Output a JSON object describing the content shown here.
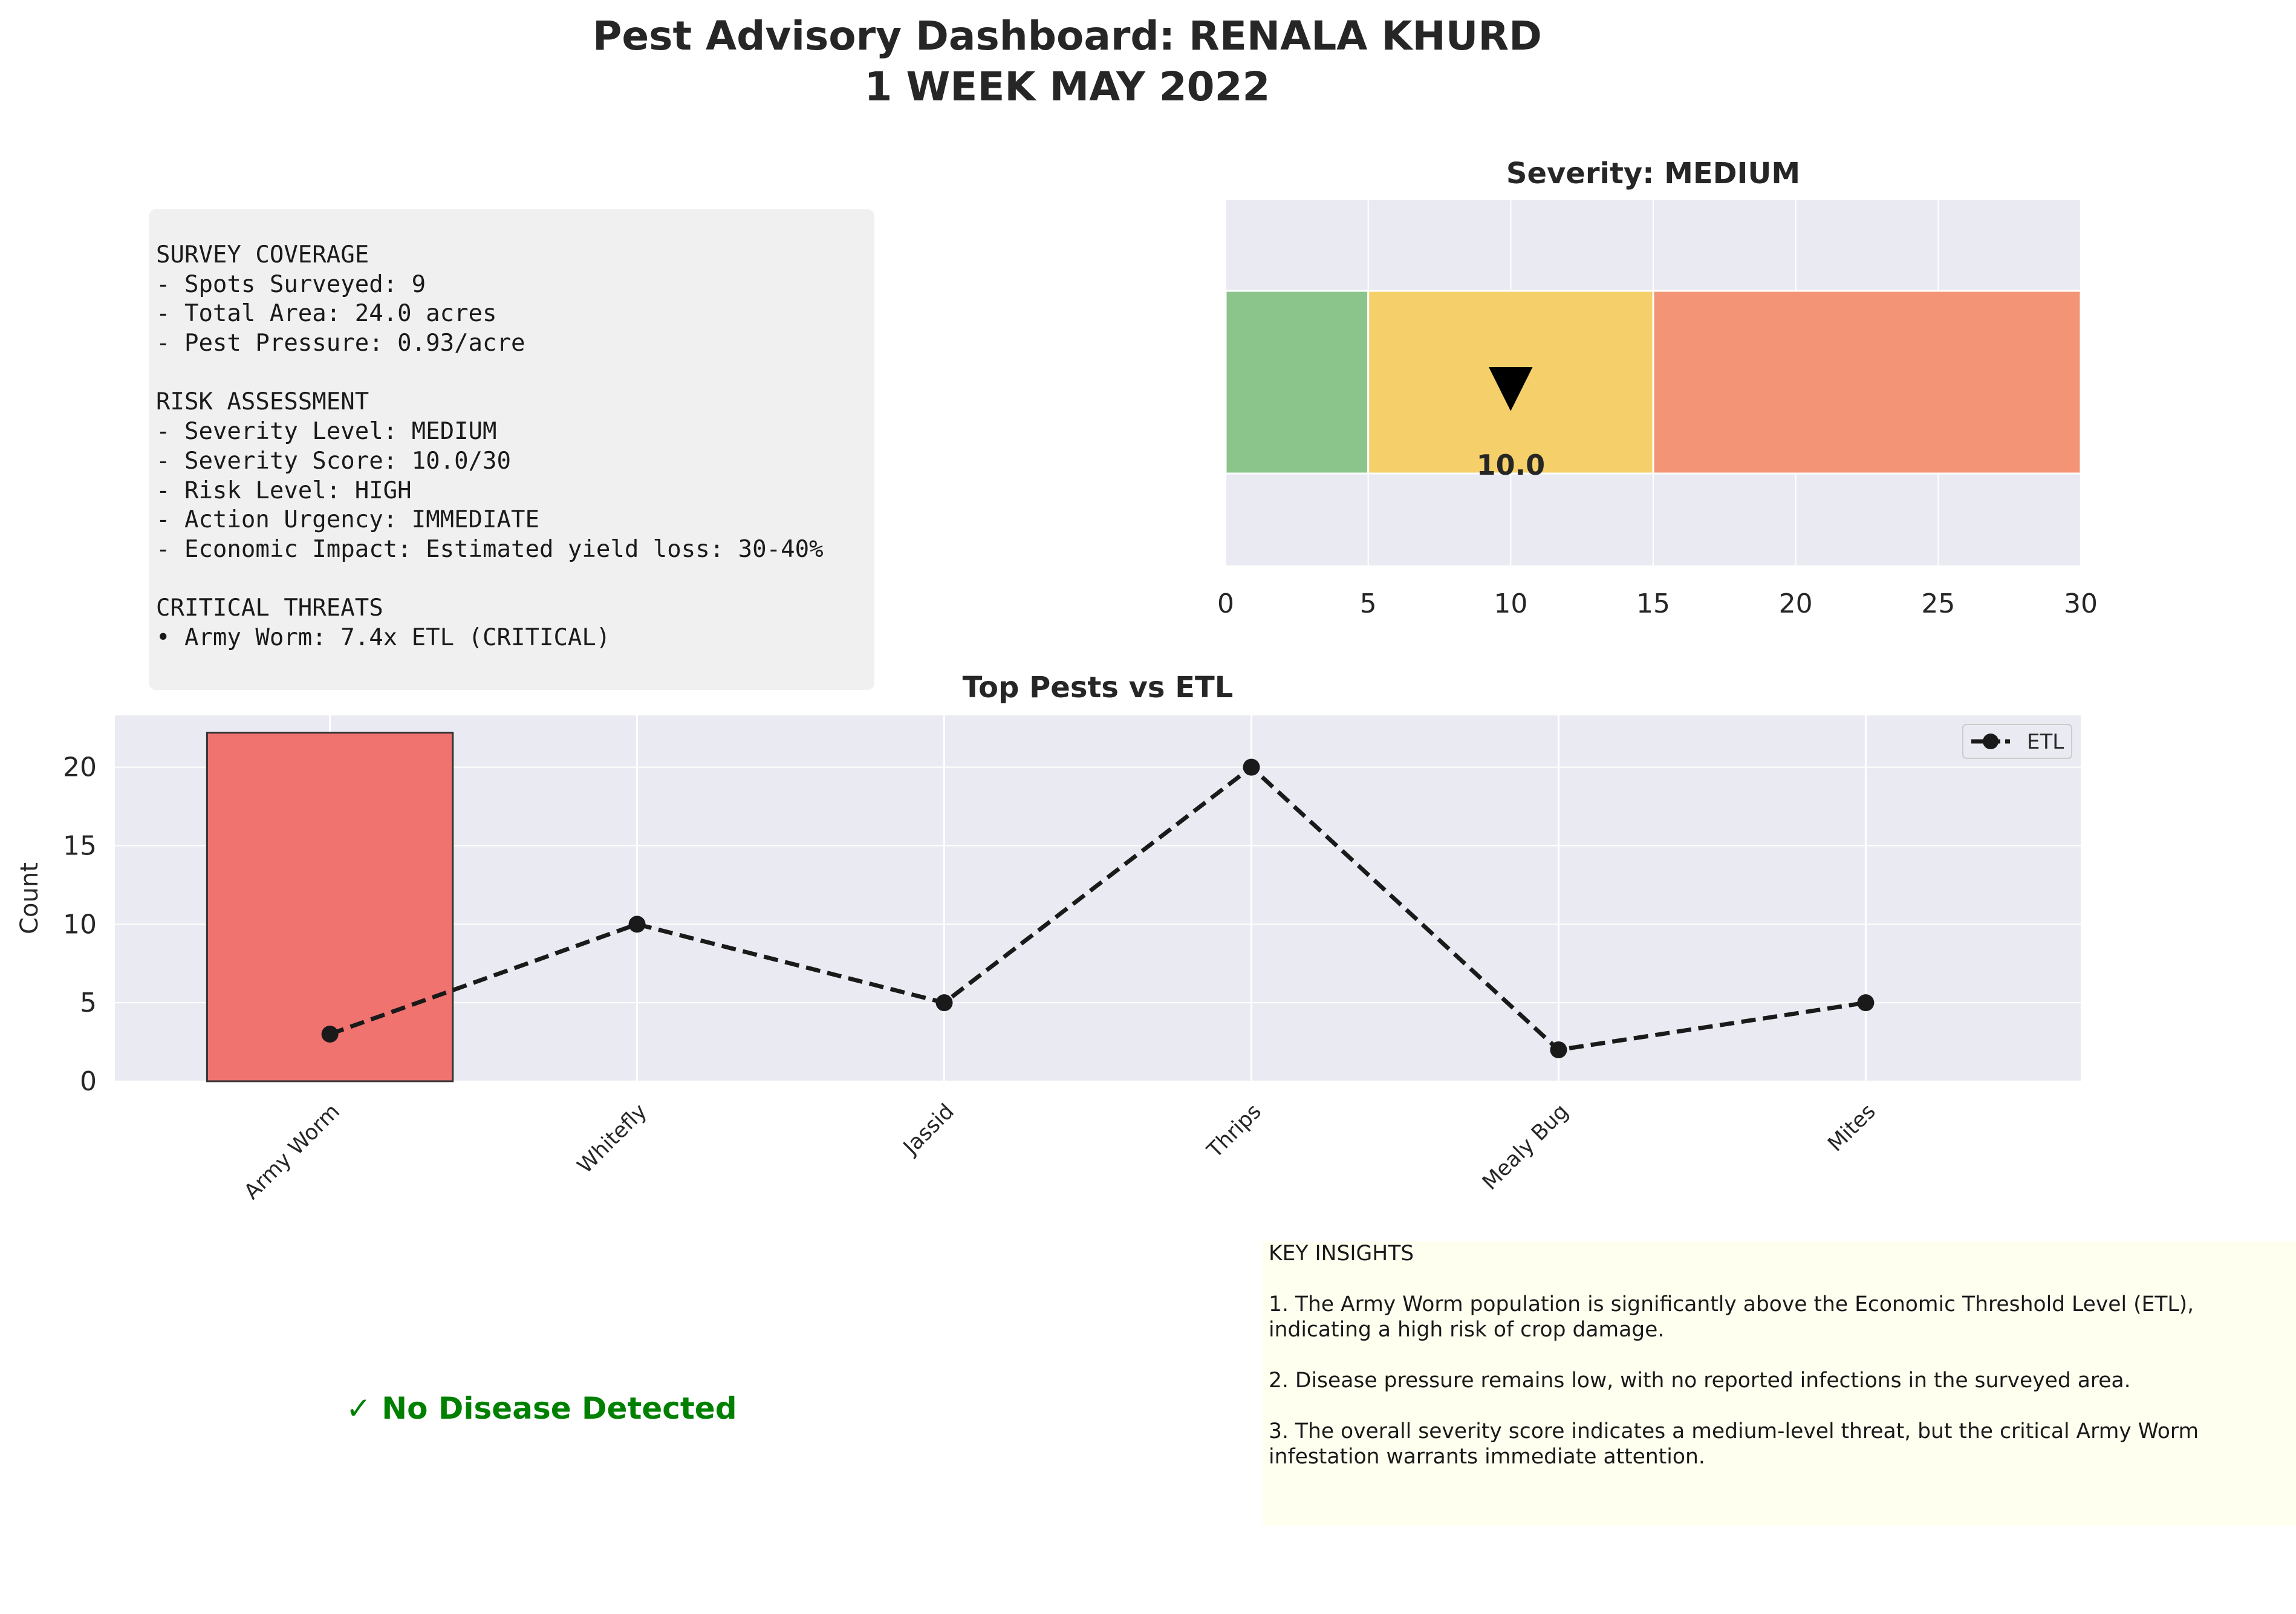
{
  "title_line1": "Pest Advisory Dashboard: RENALA KHURD",
  "title_line2": "1 WEEK MAY 2022",
  "summary": {
    "lines": [
      "SURVEY COVERAGE",
      "- Spots Surveyed: 9",
      "- Total Area: 24.0 acres",
      "- Pest Pressure: 0.93/acre",
      "",
      "RISK ASSESSMENT",
      "- Severity Level: MEDIUM",
      "- Severity Score: 10.0/30",
      "- Risk Level: HIGH",
      "- Action Urgency: IMMEDIATE",
      "- Economic Impact: Estimated yield loss: 30-40%",
      "",
      "CRITICAL THREATS",
      "• Army Worm: 7.4x ETL (CRITICAL)"
    ]
  },
  "no_disease_text": "✓ No Disease Detected",
  "insights": {
    "lines": [
      "KEY INSIGHTS",
      "",
      "1. The Army Worm population is significantly above the Economic Threshold Level (ETL), indicating a high risk of crop damage.",
      "",
      "2. Disease pressure remains low, with no reported infections in the surveyed area.",
      "",
      "3. The overall severity score indicates a medium-level threat, but the critical Army Worm infestation warrants immediate attention."
    ]
  },
  "colors": {
    "panel_bg": "#eaeaf2",
    "zone_low": "#8bc58b",
    "zone_medium": "#f5d06a",
    "zone_high": "#f49477",
    "bar": "#f0736f",
    "etl_line": "#1a1a1a",
    "no_disease": "#008000"
  },
  "chart_data": [
    {
      "type": "gauge",
      "title": "Severity: MEDIUM",
      "value": 10.0,
      "value_label": "10.0",
      "marker": "▼",
      "xlim": [
        0,
        30
      ],
      "xticks": [
        0,
        5,
        10,
        15,
        20,
        25,
        30
      ],
      "zones": [
        {
          "from": 0,
          "to": 5,
          "level": "low"
        },
        {
          "from": 5,
          "to": 15,
          "level": "medium"
        },
        {
          "from": 15,
          "to": 30,
          "level": "high"
        }
      ]
    },
    {
      "type": "bar",
      "title": "Top Pests vs ETL",
      "ylabel": "Count",
      "categories": [
        "Army Worm",
        "Whitefly",
        "Jassid",
        "Thrips",
        "Mealy Bug",
        "Mites"
      ],
      "series": [
        {
          "kind": "bar",
          "values": [
            22.2,
            0,
            0,
            0,
            0,
            0
          ]
        },
        {
          "kind": "line",
          "name": "ETL",
          "values": [
            3,
            10,
            5,
            20,
            2,
            5
          ]
        }
      ],
      "ylim": [
        0,
        23.3
      ],
      "yticks": [
        0,
        5,
        10,
        15,
        20
      ],
      "legend": "top-right"
    }
  ]
}
